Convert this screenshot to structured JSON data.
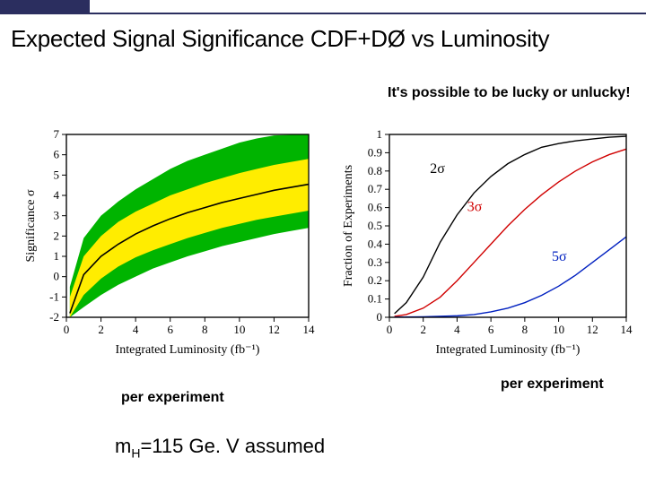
{
  "title": "Expected Signal Significance CDF+DØ vs Luminosity",
  "lucky_text": "It's possible to be lucky or\nunlucky!",
  "per_experiment_left": "per experiment",
  "per_experiment_right": "per experiment",
  "formula": {
    "prefix": "m",
    "sub": "H",
    "rest": "=115 Ge. V assumed"
  },
  "left_chart": {
    "type": "band-line",
    "background_color": "#ffffff",
    "axis_color": "#000000",
    "grid": false,
    "x": {
      "label": "Integrated Luminosity (fb⁻¹)",
      "lim": [
        0,
        14
      ],
      "ticks": [
        0,
        2,
        4,
        6,
        8,
        10,
        12,
        14
      ],
      "fontsize": 14
    },
    "y": {
      "label": "Significance σ",
      "lim": [
        -2,
        7
      ],
      "ticks": [
        -2,
        -1,
        0,
        1,
        2,
        3,
        4,
        5,
        6,
        7
      ],
      "fontsize": 14
    },
    "bands": [
      {
        "color": "#00b400",
        "upper": [
          [
            0.2,
            -0.5
          ],
          [
            1,
            1.9
          ],
          [
            2,
            3.0
          ],
          [
            3,
            3.7
          ],
          [
            4,
            4.3
          ],
          [
            5,
            4.8
          ],
          [
            6,
            5.3
          ],
          [
            7,
            5.7
          ],
          [
            8,
            6.0
          ],
          [
            9,
            6.3
          ],
          [
            10,
            6.6
          ],
          [
            11,
            6.8
          ],
          [
            12,
            6.95
          ],
          [
            13,
            6.98
          ],
          [
            14,
            7.0
          ]
        ],
        "lower": [
          [
            0.2,
            -2.0
          ],
          [
            1,
            -1.5
          ],
          [
            2,
            -0.9
          ],
          [
            3,
            -0.4
          ],
          [
            4,
            0.0
          ],
          [
            5,
            0.4
          ],
          [
            6,
            0.7
          ],
          [
            7,
            1.0
          ],
          [
            8,
            1.25
          ],
          [
            9,
            1.5
          ],
          [
            10,
            1.7
          ],
          [
            11,
            1.9
          ],
          [
            12,
            2.1
          ],
          [
            13,
            2.25
          ],
          [
            14,
            2.4
          ]
        ]
      },
      {
        "color": "#ffed00",
        "upper": [
          [
            0.2,
            -1.0
          ],
          [
            1,
            1.0
          ],
          [
            2,
            2.0
          ],
          [
            3,
            2.7
          ],
          [
            4,
            3.2
          ],
          [
            5,
            3.6
          ],
          [
            6,
            4.0
          ],
          [
            7,
            4.3
          ],
          [
            8,
            4.6
          ],
          [
            9,
            4.85
          ],
          [
            10,
            5.1
          ],
          [
            11,
            5.3
          ],
          [
            12,
            5.5
          ],
          [
            13,
            5.65
          ],
          [
            14,
            5.8
          ]
        ],
        "lower": [
          [
            0.2,
            -2.0
          ],
          [
            1,
            -0.9
          ],
          [
            2,
            -0.1
          ],
          [
            3,
            0.5
          ],
          [
            4,
            0.95
          ],
          [
            5,
            1.3
          ],
          [
            6,
            1.6
          ],
          [
            7,
            1.9
          ],
          [
            8,
            2.15
          ],
          [
            9,
            2.4
          ],
          [
            10,
            2.6
          ],
          [
            11,
            2.8
          ],
          [
            12,
            2.95
          ],
          [
            13,
            3.1
          ],
          [
            14,
            3.25
          ]
        ]
      }
    ],
    "central_line": {
      "color": "#000000",
      "width": 1.6,
      "pts": [
        [
          0.2,
          -1.8
        ],
        [
          1,
          0.1
        ],
        [
          2,
          1.0
        ],
        [
          3,
          1.6
        ],
        [
          4,
          2.1
        ],
        [
          5,
          2.5
        ],
        [
          6,
          2.85
        ],
        [
          7,
          3.15
        ],
        [
          8,
          3.4
        ],
        [
          9,
          3.65
        ],
        [
          10,
          3.85
        ],
        [
          11,
          4.05
        ],
        [
          12,
          4.25
        ],
        [
          13,
          4.4
        ],
        [
          14,
          4.55
        ]
      ]
    }
  },
  "right_chart": {
    "type": "line",
    "background_color": "#ffffff",
    "axis_color": "#000000",
    "grid": false,
    "x": {
      "label": "Integrated Luminosity (fb⁻¹)",
      "lim": [
        0,
        14
      ],
      "ticks": [
        0,
        2,
        4,
        6,
        8,
        10,
        12,
        14
      ],
      "fontsize": 14
    },
    "y": {
      "label": "Fraction of Experiments",
      "lim": [
        0,
        1
      ],
      "ticks": [
        0,
        0.1,
        0.2,
        0.3,
        0.4,
        0.5,
        0.6,
        0.7,
        0.8,
        0.9,
        1
      ],
      "fontsize": 14
    },
    "series": [
      {
        "label": "2σ",
        "label_color": "#000000",
        "label_pos": [
          2.4,
          0.79
        ],
        "color": "#000000",
        "width": 1.4,
        "pts": [
          [
            0.3,
            0.02
          ],
          [
            1,
            0.08
          ],
          [
            2,
            0.22
          ],
          [
            3,
            0.41
          ],
          [
            4,
            0.56
          ],
          [
            5,
            0.68
          ],
          [
            6,
            0.77
          ],
          [
            7,
            0.84
          ],
          [
            8,
            0.89
          ],
          [
            9,
            0.93
          ],
          [
            10,
            0.95
          ],
          [
            11,
            0.965
          ],
          [
            12,
            0.975
          ],
          [
            13,
            0.985
          ],
          [
            14,
            0.99
          ]
        ]
      },
      {
        "label": "3σ",
        "label_color": "#d00000",
        "label_pos": [
          4.6,
          0.58
        ],
        "color": "#d00000",
        "width": 1.4,
        "pts": [
          [
            0.3,
            0.005
          ],
          [
            1,
            0.015
          ],
          [
            2,
            0.05
          ],
          [
            3,
            0.11
          ],
          [
            4,
            0.2
          ],
          [
            5,
            0.3
          ],
          [
            6,
            0.4
          ],
          [
            7,
            0.5
          ],
          [
            8,
            0.59
          ],
          [
            9,
            0.67
          ],
          [
            10,
            0.74
          ],
          [
            11,
            0.8
          ],
          [
            12,
            0.85
          ],
          [
            13,
            0.89
          ],
          [
            14,
            0.92
          ]
        ]
      },
      {
        "label": "5σ",
        "label_color": "#0020c0",
        "label_pos": [
          9.6,
          0.31
        ],
        "color": "#0020c0",
        "width": 1.4,
        "pts": [
          [
            0.3,
            0.001
          ],
          [
            2,
            0.003
          ],
          [
            4,
            0.008
          ],
          [
            5,
            0.015
          ],
          [
            6,
            0.03
          ],
          [
            7,
            0.05
          ],
          [
            8,
            0.08
          ],
          [
            9,
            0.12
          ],
          [
            10,
            0.17
          ],
          [
            11,
            0.23
          ],
          [
            12,
            0.3
          ],
          [
            13,
            0.37
          ],
          [
            14,
            0.44
          ]
        ]
      }
    ]
  }
}
